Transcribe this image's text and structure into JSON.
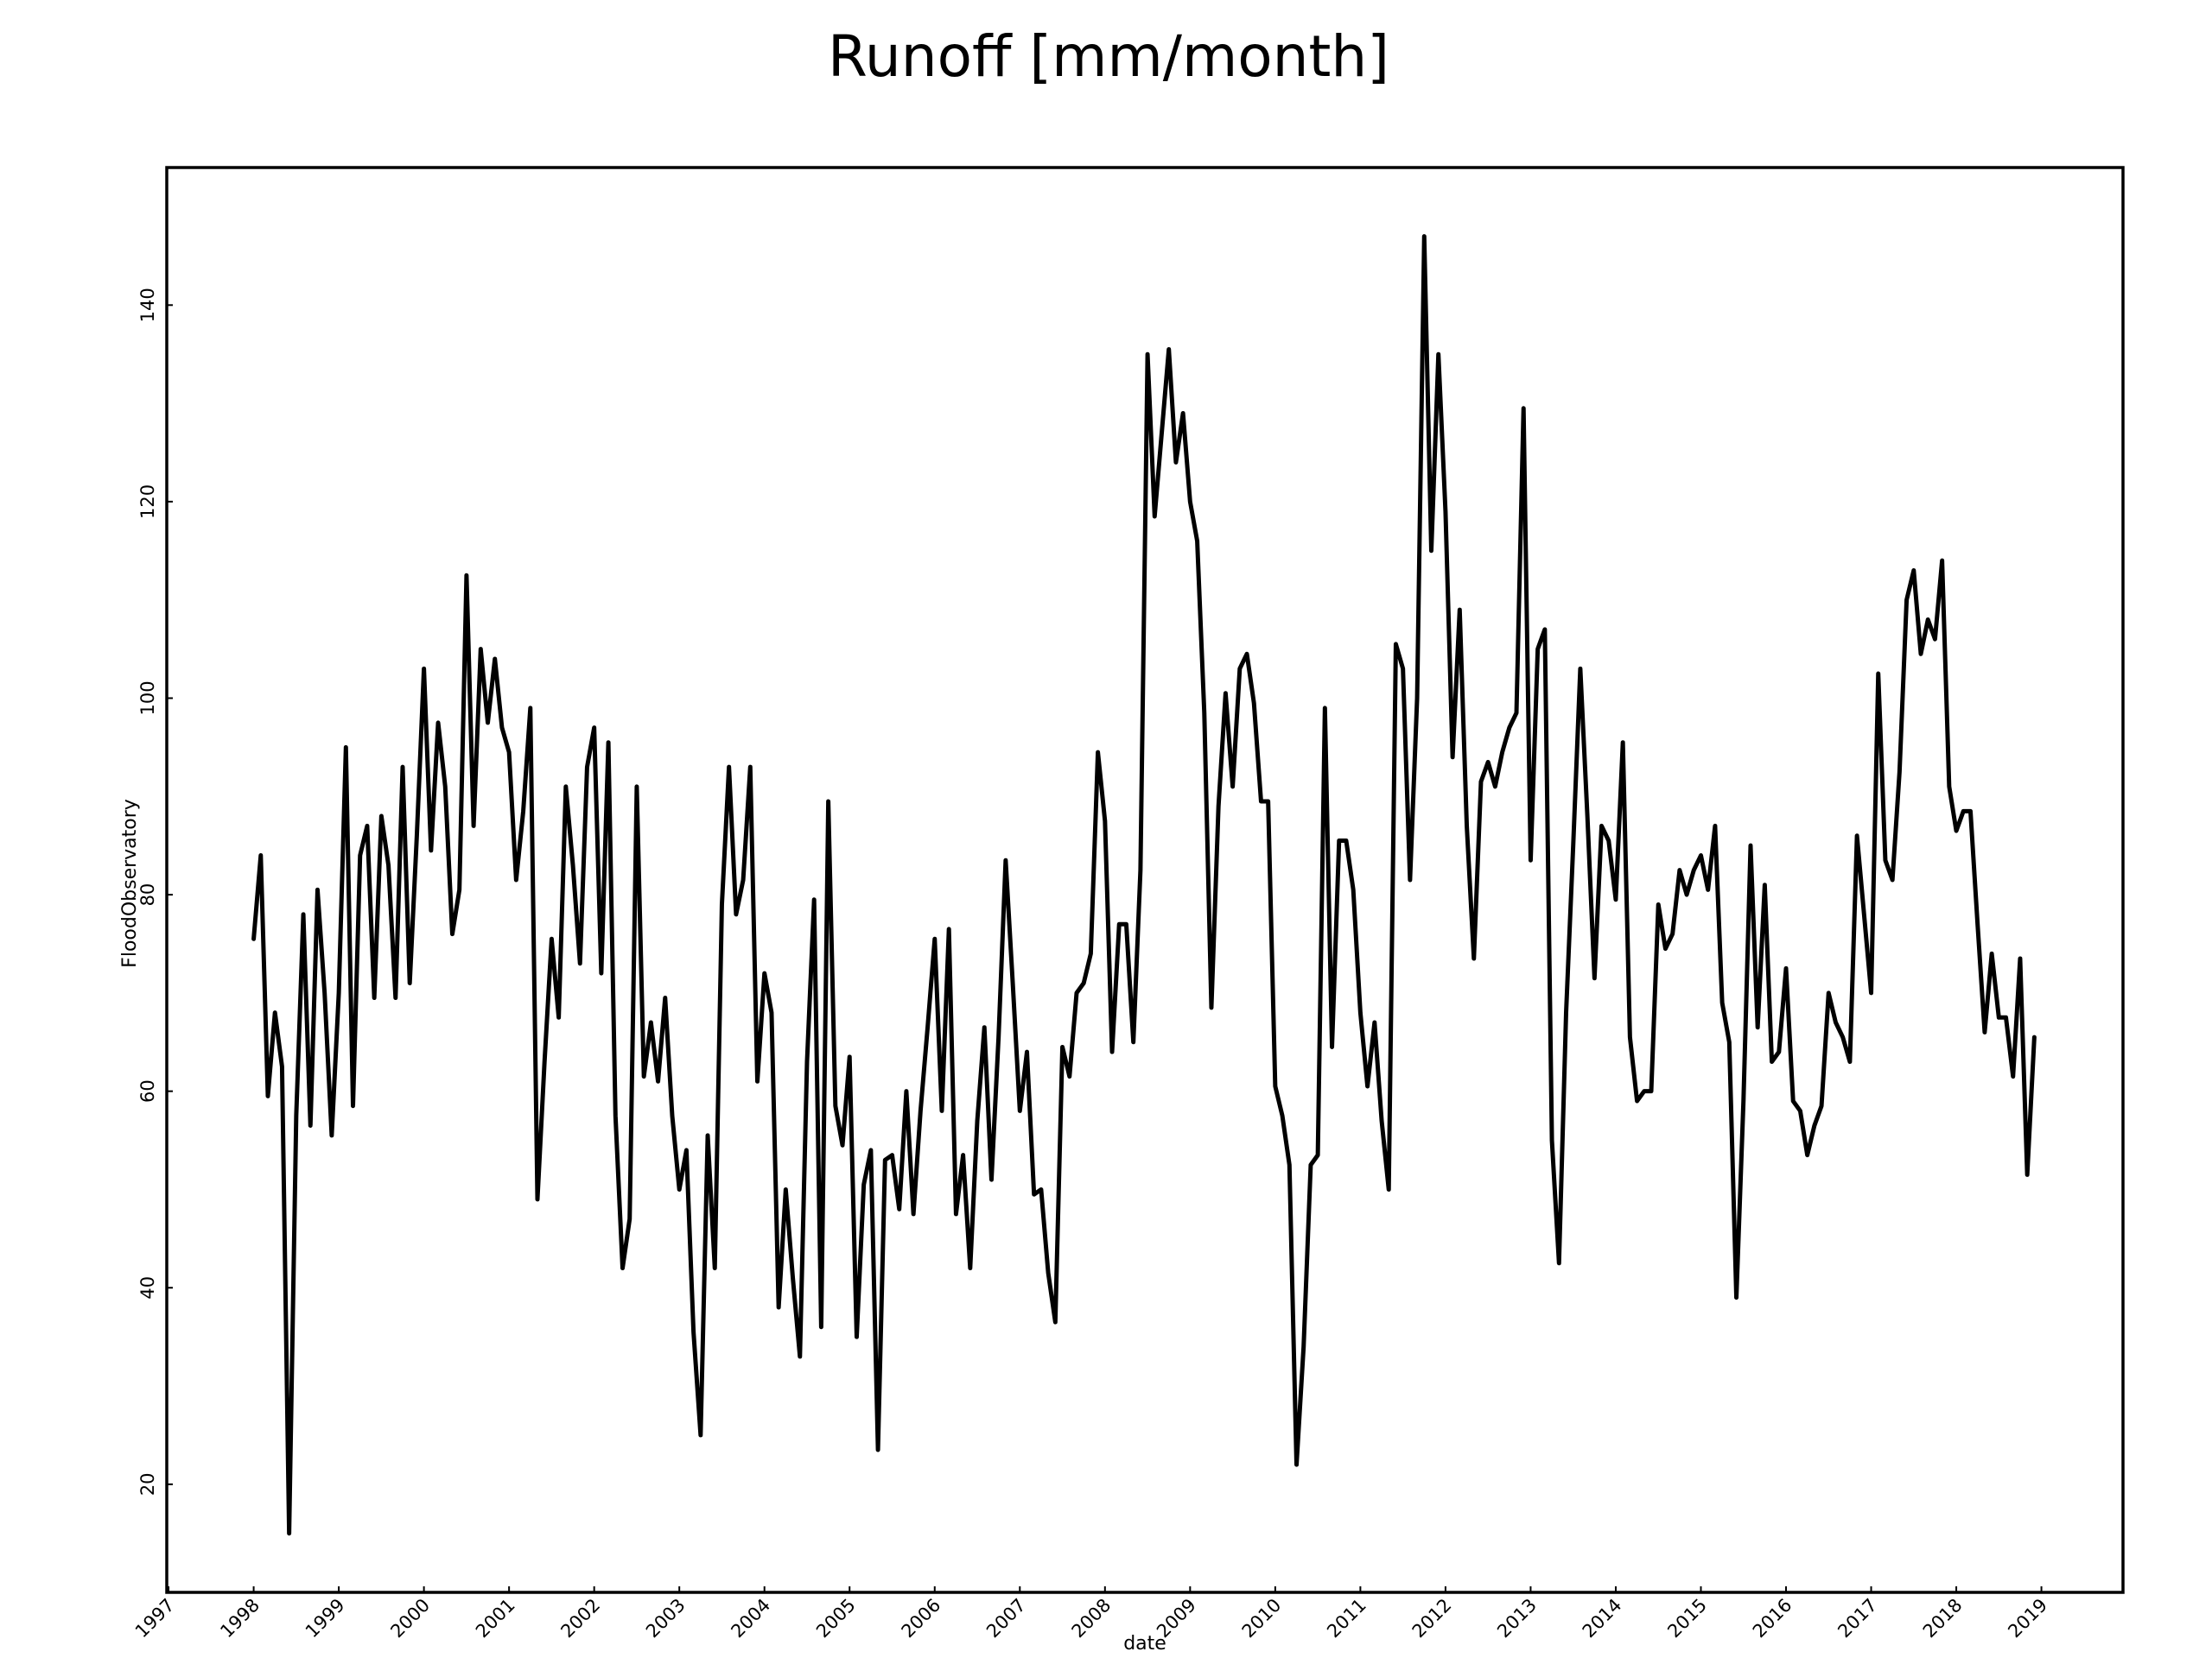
{
  "chart_data": {
    "type": "line",
    "title": "Runoff [mm/month]",
    "xlabel": "date",
    "ylabel": "FloodObservatory",
    "xlim": [
      "1997-01",
      "2019-12"
    ],
    "ylim": [
      9,
      154
    ],
    "x_ticks": [
      "1997",
      "1998",
      "1999",
      "2000",
      "2001",
      "2002",
      "2003",
      "2004",
      "2005",
      "2006",
      "2007",
      "2008",
      "2009",
      "2010",
      "2011",
      "2012",
      "2013",
      "2014",
      "2015",
      "2016",
      "2017",
      "2018",
      "2019"
    ],
    "y_ticks": [
      20,
      40,
      60,
      80,
      100,
      120,
      140
    ],
    "grid": false,
    "line_color": "#000000",
    "series": [
      {
        "start": "1998-01",
        "frequency": "monthly",
        "values": [
          75.5,
          84,
          59.5,
          68,
          62.5,
          15,
          57.5,
          78,
          56.5,
          80.5,
          70,
          55.5,
          70,
          95,
          58.5,
          84,
          87,
          69.5,
          88,
          83,
          69.5,
          93,
          71,
          86,
          103,
          84.5,
          97.5,
          91,
          76,
          80.5,
          112.5,
          87,
          105,
          97.5,
          104,
          97,
          94.5,
          81.5,
          88.5,
          99,
          49,
          63,
          75.5,
          67.5,
          91,
          83,
          73,
          93,
          97,
          72,
          95.5,
          57.5,
          42,
          47,
          91,
          61.5,
          67,
          61,
          69.5,
          57.5,
          50,
          54,
          35.5,
          25,
          55.5,
          42,
          79,
          93,
          78,
          81.5,
          93,
          61,
          72,
          68,
          38,
          50,
          41,
          33,
          63,
          79.5,
          36,
          89.5,
          58.5,
          54.5,
          63.5,
          35,
          50.5,
          54,
          23.5,
          53,
          53.5,
          48,
          60,
          47.5,
          58,
          66.5,
          75.5,
          58,
          76.5,
          47.5,
          53.5,
          42,
          57,
          66.5,
          51,
          65.5,
          83.5,
          71,
          58,
          64,
          49.5,
          50,
          41.5,
          36.5,
          64.5,
          61.5,
          70,
          71,
          74,
          94.5,
          87.5,
          64,
          77,
          77,
          65,
          82.5,
          135,
          118.5,
          127,
          135.5,
          124,
          129,
          120,
          116,
          98.5,
          68.5,
          89,
          100.5,
          91,
          103,
          104.5,
          99.5,
          89.5,
          89.5,
          60.5,
          57.5,
          52.5,
          22,
          34,
          52.5,
          53.5,
          99,
          64.5,
          85.5,
          85.5,
          80.5,
          68,
          60.5,
          67,
          57,
          50,
          105.5,
          103,
          81.5,
          100,
          147,
          115,
          135,
          119,
          94,
          109,
          87,
          73.5,
          91.5,
          93.5,
          91,
          94.5,
          97,
          98.5,
          129.5,
          83.5,
          105,
          107,
          55,
          42.5,
          68,
          85,
          103,
          88,
          71.5,
          87,
          85.5,
          79.5,
          95.5,
          65.5,
          59,
          60,
          60,
          79,
          74.5,
          76,
          82.5,
          80,
          82.5,
          84,
          80.5,
          87,
          69,
          65,
          39,
          59,
          85,
          66.5,
          81,
          63,
          64,
          72.5,
          59,
          58,
          53.5,
          56.5,
          58.5,
          70,
          67,
          65.5,
          63,
          86,
          78,
          70,
          102.5,
          83.5,
          81.5,
          92.5,
          110,
          113,
          104.5,
          108,
          106,
          114,
          91,
          86.5,
          88.5,
          88.5,
          77,
          66,
          74,
          67.5,
          67.5,
          61.5,
          73.5,
          51.5,
          65.5
        ]
      }
    ]
  }
}
